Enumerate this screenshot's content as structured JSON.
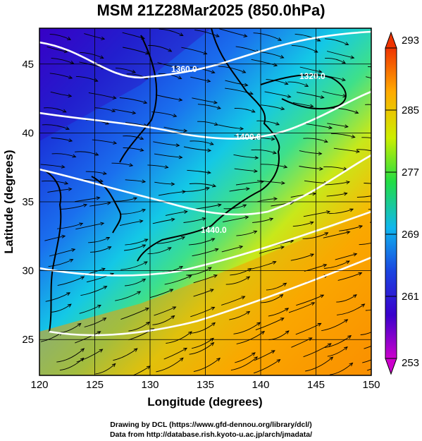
{
  "title": "MSM 21Z28Mar2025 (850.0hPa)",
  "x_axis": {
    "label": "Longitude (degrees)",
    "ticks": [
      "120",
      "125",
      "130",
      "135",
      "140",
      "145",
      "150"
    ],
    "range": [
      120,
      150
    ]
  },
  "y_axis": {
    "label": "Latitude  (degrees)",
    "ticks": [
      "25",
      "30",
      "35",
      "40",
      "45"
    ],
    "range": [
      22.4,
      47.6
    ]
  },
  "colorbar": {
    "labels": [
      "293",
      "285",
      "277",
      "269",
      "261",
      "253"
    ],
    "range": [
      253,
      293
    ],
    "colors": [
      "#cc00cc",
      "#2222dd",
      "#1188ee",
      "#00ddcc",
      "#22dd22",
      "#ddee00",
      "#ffaa00",
      "#ee3300"
    ]
  },
  "contours": [
    {
      "label": "1360.0"
    },
    {
      "label": "1320.0"
    },
    {
      "label": "1400.0"
    },
    {
      "label": "1440.0"
    }
  ],
  "footer": {
    "line1": "Drawing by DCL (https://www.gfd-dennou.org/library/dcl/)",
    "line2": "Data from http://database.rish.kyoto-u.ac.jp/arch/jmadata/"
  }
}
